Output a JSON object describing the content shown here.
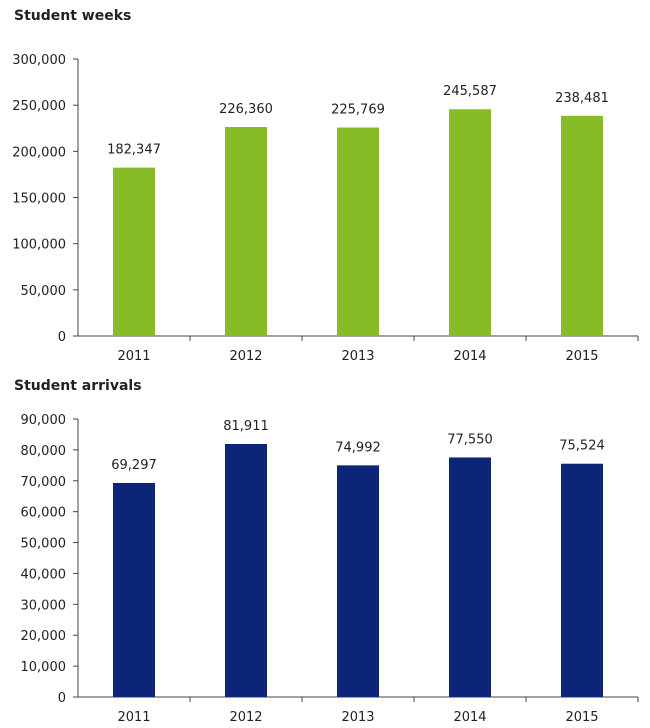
{
  "chart_data": [
    {
      "type": "bar",
      "title": "Student weeks",
      "categories": [
        "2011",
        "2012",
        "2013",
        "2014",
        "2015"
      ],
      "values": [
        182347,
        226360,
        225769,
        245587,
        238481
      ],
      "labels": [
        "182,347",
        "226,360",
        "225,769",
        "245,587",
        "238,481"
      ],
      "ylim": [
        0,
        300000
      ],
      "yticks": [
        0,
        50000,
        100000,
        150000,
        200000,
        250000,
        300000
      ],
      "ytick_labels": [
        "0",
        "50,000",
        "100,000",
        "150,000",
        "200,000",
        "250,000",
        "300,000"
      ],
      "color": "#86bc25",
      "grid": false
    },
    {
      "type": "bar",
      "title": "Student arrivals",
      "categories": [
        "2011",
        "2012",
        "2013",
        "2014",
        "2015"
      ],
      "values": [
        69297,
        81911,
        74992,
        77550,
        75524
      ],
      "labels": [
        "69,297",
        "81,911",
        "74,992",
        "77,550",
        "75,524"
      ],
      "ylim": [
        0,
        90000
      ],
      "yticks": [
        0,
        10000,
        20000,
        30000,
        40000,
        50000,
        60000,
        70000,
        80000,
        90000
      ],
      "ytick_labels": [
        "0",
        "10,000",
        "20,000",
        "30,000",
        "40,000",
        "50,000",
        "60,000",
        "70,000",
        "80,000",
        "90,000"
      ],
      "color": "#0c2577",
      "grid": false
    }
  ]
}
